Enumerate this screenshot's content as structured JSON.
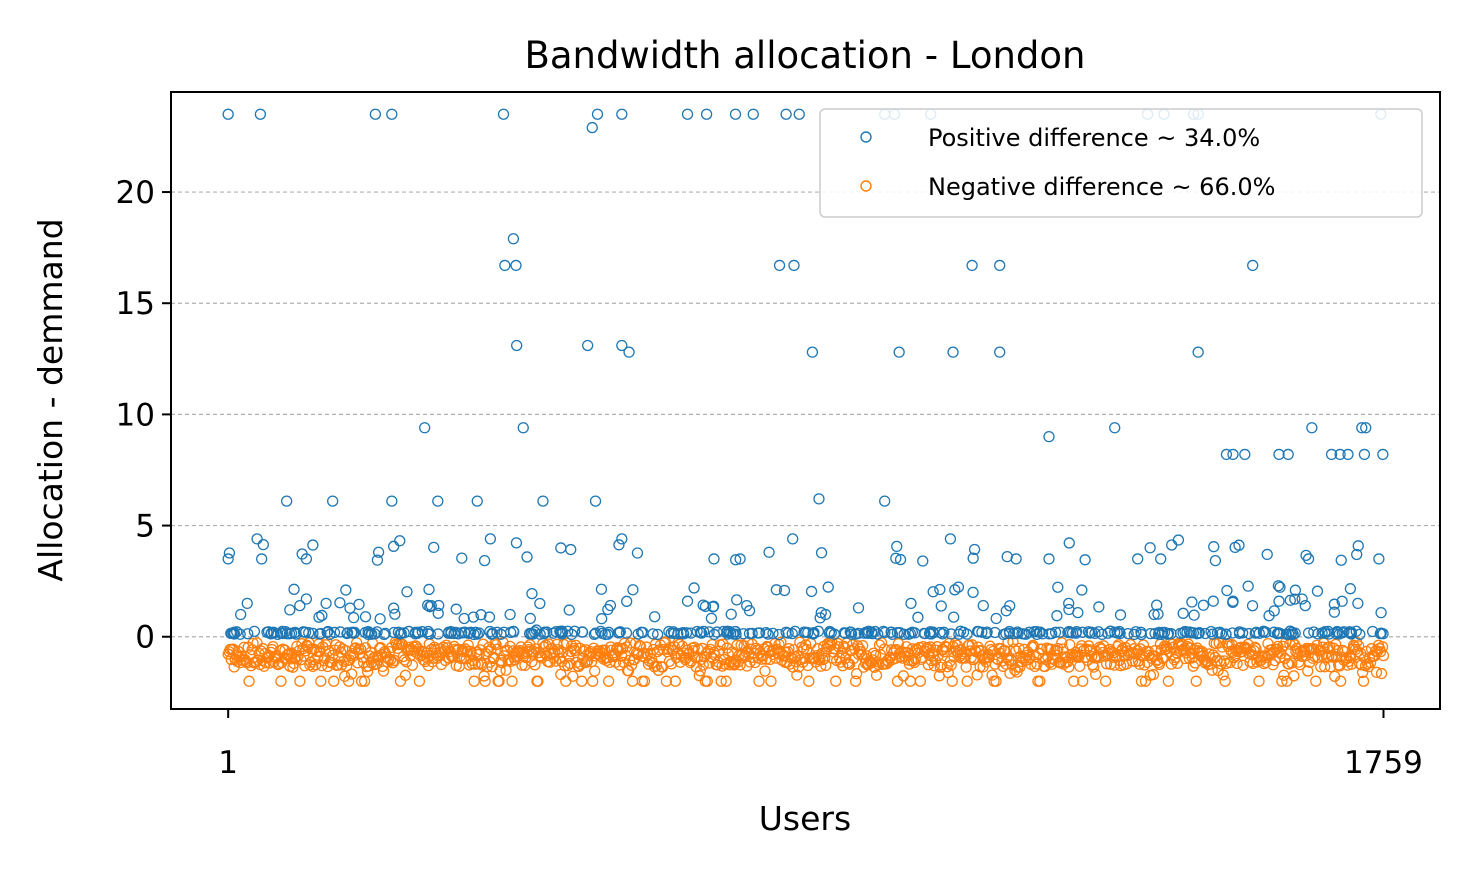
{
  "chart_data": {
    "type": "scatter",
    "title": "Bandwidth allocation - London",
    "xlabel": "Users",
    "ylabel": "Allocation - demmand",
    "xlim": [
      -86,
      1845
    ],
    "ylim": [
      -3.25,
      24.5
    ],
    "xticks": [
      1,
      1759
    ],
    "yticks": [
      0,
      5,
      10,
      15,
      20
    ],
    "grid": "y-dashed",
    "legend_position": "top-right",
    "colors": {
      "positive": "#1f77b4",
      "negative": "#ff7f0e"
    },
    "series": [
      {
        "name": "Positive difference ~ 34.0%",
        "color": "#1f77b4",
        "marker": "hollow-circle",
        "count": 598,
        "x": [
          1,
          50,
          225,
          250,
          420,
          555,
          563,
          600,
          700,
          729,
          773,
          800,
          850,
          870,
          1000,
          1015,
          1070,
          1400,
          1425,
          1477,
          1470,
          1755,
          422,
          435,
          439,
          840,
          862,
          1133,
          1175,
          1560,
          440,
          548,
          600,
          611,
          890,
          1022,
          1104,
          1175,
          1477,
          1520,
          1530,
          1548,
          1614,
          1730,
          1758,
          1693,
          1680,
          1600,
          1705,
          300,
          450,
          1250,
          1350,
          1650,
          1726,
          1732,
          1,
          52,
          120,
          1385,
          1645,
          1752,
          20,
          45,
          90,
          160,
          180,
          250,
          320,
          380,
          400,
          480,
          560,
          600,
          700,
          780,
          860,
          900,
          1000,
          1100,
          1200,
          1250,
          1300,
          1420,
          1500,
          1600,
          10,
          30,
          60,
          110,
          150,
          210,
          260,
          310,
          370,
          430,
          470,
          520,
          580,
          650,
          720,
          790,
          850,
          910,
          980,
          1040,
          1090,
          1150,
          1220,
          1280,
          1350,
          1410,
          1460,
          1530,
          1580,
          1640,
          1690,
          1720,
          5,
          70,
          130,
          190,
          240,
          290,
          340,
          410,
          460,
          510,
          570,
          630,
          690,
          760,
          830,
          880,
          940,
          1010,
          1060,
          1120,
          1190,
          1260,
          1320,
          1390,
          1450,
          1510,
          1570,
          1620,
          1670,
          1710
        ],
        "y": [
          23.5,
          23.5,
          23.5,
          23.5,
          23.5,
          22.9,
          23.5,
          23.5,
          23.5,
          23.5,
          23.5,
          23.5,
          23.5,
          23.5,
          23.5,
          23.5,
          23.5,
          23.5,
          23.5,
          23.5,
          23.5,
          23.5,
          16.7,
          17.9,
          16.7,
          16.7,
          16.7,
          16.7,
          16.7,
          16.7,
          13.1,
          13.1,
          13.1,
          12.8,
          12.8,
          12.8,
          12.8,
          12.8,
          12.8,
          8.2,
          8.2,
          8.2,
          8.2,
          8.2,
          8.2,
          8.2,
          8.2,
          8.2,
          8.2,
          9.4,
          9.4,
          9.0,
          9.4,
          9.4,
          9.4,
          9.4,
          3.5,
          3.5,
          3.5,
          3.5,
          3.5,
          3.5,
          1.0,
          4.4,
          6.1,
          6.1,
          2.1,
          6.1,
          6.1,
          6.1,
          4.4,
          6.1,
          6.1,
          4.4,
          1.6,
          3.5,
          4.4,
          6.2,
          6.1,
          4.4,
          3.5,
          3.5,
          2.1,
          3.5,
          1.6,
          1.6,
          0.2,
          1.5,
          0.2,
          1.4,
          1.5,
          0.9,
          0.2,
          1.4,
          0.2,
          1.0,
          0.3,
          1.2,
          0.2,
          0.9,
          0.2,
          1.4,
          0.2,
          1.0,
          0.2,
          1.5,
          0.2,
          1.4,
          0.2,
          1.5,
          0.2,
          1.0,
          0.2,
          1.6,
          0.2,
          1.4,
          0.2,
          1.5,
          0.15,
          0.2,
          0.15,
          0.2,
          0.15,
          0.2,
          0.15,
          0.2,
          0.15,
          0.2,
          0.15,
          0.2,
          0.15,
          0.2,
          0.15,
          0.2,
          0.15,
          0.2,
          0.15,
          0.2,
          0.15,
          0.2,
          0.15,
          0.2,
          0.15,
          0.2,
          0.15,
          0.2,
          0.15,
          0.2
        ]
      },
      {
        "name": "Negative difference ~ 66.0%",
        "color": "#ff7f0e",
        "marker": "hollow-circle",
        "count": 1161,
        "y_range": [
          -2.0,
          -0.2
        ],
        "y_examples": [
          -1.1,
          -0.6,
          -0.9,
          -0.3,
          -1.5,
          -2.0,
          -0.5,
          -1.2,
          -0.8,
          -2.0
        ]
      }
    ]
  }
}
